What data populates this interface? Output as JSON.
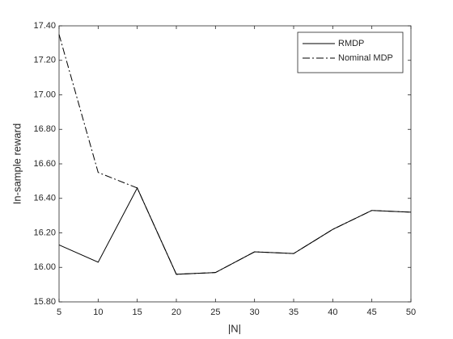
{
  "chart_data": {
    "type": "line",
    "x_label": "|N|",
    "y_label": "In-sample reward",
    "x": [
      5,
      10,
      15,
      20,
      25,
      30,
      35,
      40,
      45,
      50
    ],
    "series": [
      {
        "name": "RMDP",
        "color": "#000000",
        "dash": "solid",
        "values": [
          16.13,
          16.03,
          16.46,
          15.96,
          15.97,
          16.09,
          16.08,
          16.22,
          16.33,
          16.32
        ]
      },
      {
        "name": "Nominal MDP",
        "color": "#000000",
        "dash": "dashdot",
        "values": [
          17.35,
          16.55,
          16.46,
          15.96,
          15.97,
          16.09,
          16.08,
          16.22,
          16.33,
          16.32
        ]
      }
    ],
    "xlim": [
      5,
      50
    ],
    "xticks": [
      5,
      10,
      15,
      20,
      25,
      30,
      35,
      40,
      45,
      50
    ],
    "ylim": [
      15.8,
      17.4
    ],
    "yticks": [
      {
        "value": 15.8,
        "label": "15.80"
      },
      {
        "value": 16.0,
        "label": "16.00"
      },
      {
        "value": 16.2,
        "label": "16.20"
      },
      {
        "value": 16.4,
        "label": "16.40"
      },
      {
        "value": 16.6,
        "label": "16.60"
      },
      {
        "value": 16.8,
        "label": "16.80"
      },
      {
        "value": 17.0,
        "label": "17.00"
      },
      {
        "value": 17.2,
        "label": "17.20"
      },
      {
        "value": 17.4,
        "label": "17.40"
      }
    ],
    "grid": false,
    "legend": "northeast"
  }
}
